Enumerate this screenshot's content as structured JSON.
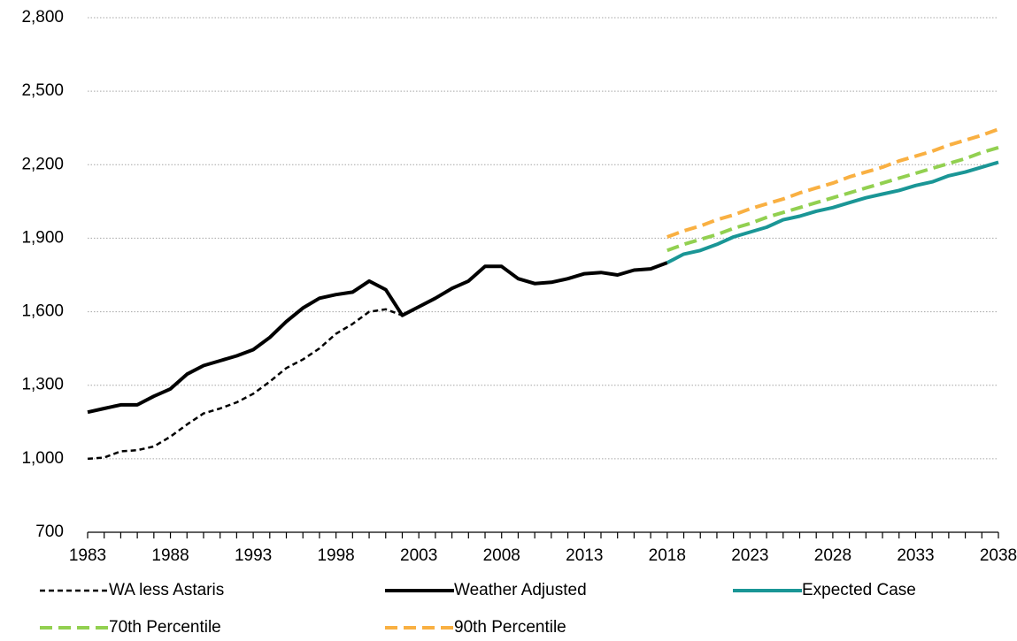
{
  "chart_data": {
    "type": "line",
    "x": [
      1983,
      1984,
      1985,
      1986,
      1987,
      1988,
      1989,
      1990,
      1991,
      1992,
      1993,
      1994,
      1995,
      1996,
      1997,
      1998,
      1999,
      2000,
      2001,
      2002,
      2003,
      2004,
      2005,
      2006,
      2007,
      2008,
      2009,
      2010,
      2011,
      2012,
      2013,
      2014,
      2015,
      2016,
      2017,
      2018,
      2019,
      2020,
      2021,
      2022,
      2023,
      2024,
      2025,
      2026,
      2027,
      2028,
      2029,
      2030,
      2031,
      2032,
      2033,
      2034,
      2035,
      2036,
      2037,
      2038
    ],
    "xlim": [
      1983,
      2038
    ],
    "xticks": [
      1983,
      1988,
      1993,
      1998,
      2003,
      2008,
      2013,
      2018,
      2023,
      2028,
      2033,
      2038
    ],
    "ylim": [
      700,
      2800
    ],
    "yticks": [
      700,
      {
        "value": 1000,
        "label": "1,000"
      },
      {
        "value": 1300,
        "label": "1,300"
      },
      {
        "value": 1600,
        "label": "1,600"
      },
      {
        "value": 1900,
        "label": "1,900"
      },
      {
        "value": 2200,
        "label": "2,200"
      },
      {
        "value": 2500,
        "label": "2,500"
      },
      {
        "value": 2800,
        "label": "2,800"
      }
    ],
    "grid": true,
    "series": [
      {
        "name": "WA less Astaris",
        "color": "#000000",
        "style": "dashed",
        "width": 2.5,
        "values": [
          1000,
          1005,
          1030,
          1035,
          1050,
          1090,
          1140,
          1185,
          1205,
          1230,
          1265,
          1315,
          1370,
          1405,
          1450,
          1510,
          1550,
          1600,
          1610,
          1585,
          null,
          null,
          null,
          null,
          null,
          null,
          null,
          null,
          null,
          null,
          null,
          null,
          null,
          null,
          null,
          null,
          null,
          null,
          null,
          null,
          null,
          null,
          null,
          null,
          null,
          null,
          null,
          null,
          null,
          null,
          null,
          null,
          null,
          null,
          null,
          null
        ]
      },
      {
        "name": "Weather Adjusted",
        "color": "#000000",
        "style": "solid",
        "width": 4,
        "values": [
          1190,
          1205,
          1220,
          1220,
          1255,
          1285,
          1345,
          1380,
          1400,
          1420,
          1445,
          1495,
          1560,
          1615,
          1655,
          1670,
          1680,
          1725,
          1690,
          1585,
          1620,
          1655,
          1695,
          1725,
          1785,
          1785,
          1735,
          1715,
          1720,
          1735,
          1755,
          1760,
          1750,
          1770,
          1775,
          1800,
          null,
          null,
          null,
          null,
          null,
          null,
          null,
          null,
          null,
          null,
          null,
          null,
          null,
          null,
          null,
          null,
          null,
          null,
          null,
          null
        ]
      },
      {
        "name": "Expected Case",
        "color": "#1a9696",
        "style": "solid",
        "width": 4,
        "values": [
          null,
          null,
          null,
          null,
          null,
          null,
          null,
          null,
          null,
          null,
          null,
          null,
          null,
          null,
          null,
          null,
          null,
          null,
          null,
          null,
          null,
          null,
          null,
          null,
          null,
          null,
          null,
          null,
          null,
          null,
          null,
          null,
          null,
          null,
          null,
          1800,
          1835,
          1850,
          1875,
          1905,
          1925,
          1945,
          1975,
          1990,
          2010,
          2025,
          2045,
          2065,
          2080,
          2095,
          2115,
          2130,
          2155,
          2170,
          2190,
          2210
        ]
      },
      {
        "name": "70th Percentile",
        "color": "#92d050",
        "style": "dashed",
        "width": 4,
        "values": [
          null,
          null,
          null,
          null,
          null,
          null,
          null,
          null,
          null,
          null,
          null,
          null,
          null,
          null,
          null,
          null,
          null,
          null,
          null,
          null,
          null,
          null,
          null,
          null,
          null,
          null,
          null,
          null,
          null,
          null,
          null,
          null,
          null,
          null,
          null,
          1850,
          1875,
          1895,
          1915,
          1940,
          1960,
          1985,
          2005,
          2025,
          2045,
          2065,
          2085,
          2105,
          2125,
          2145,
          2165,
          2185,
          2205,
          2225,
          2250,
          2270
        ]
      },
      {
        "name": "90th Percentile",
        "color": "#f9b042",
        "style": "dashed",
        "width": 4,
        "values": [
          null,
          null,
          null,
          null,
          null,
          null,
          null,
          null,
          null,
          null,
          null,
          null,
          null,
          null,
          null,
          null,
          null,
          null,
          null,
          null,
          null,
          null,
          null,
          null,
          null,
          null,
          null,
          null,
          null,
          null,
          null,
          null,
          null,
          null,
          null,
          1905,
          1930,
          1950,
          1975,
          1995,
          2020,
          2040,
          2060,
          2085,
          2105,
          2125,
          2150,
          2170,
          2190,
          2215,
          2235,
          2255,
          2280,
          2300,
          2320,
          2345
        ]
      }
    ]
  }
}
